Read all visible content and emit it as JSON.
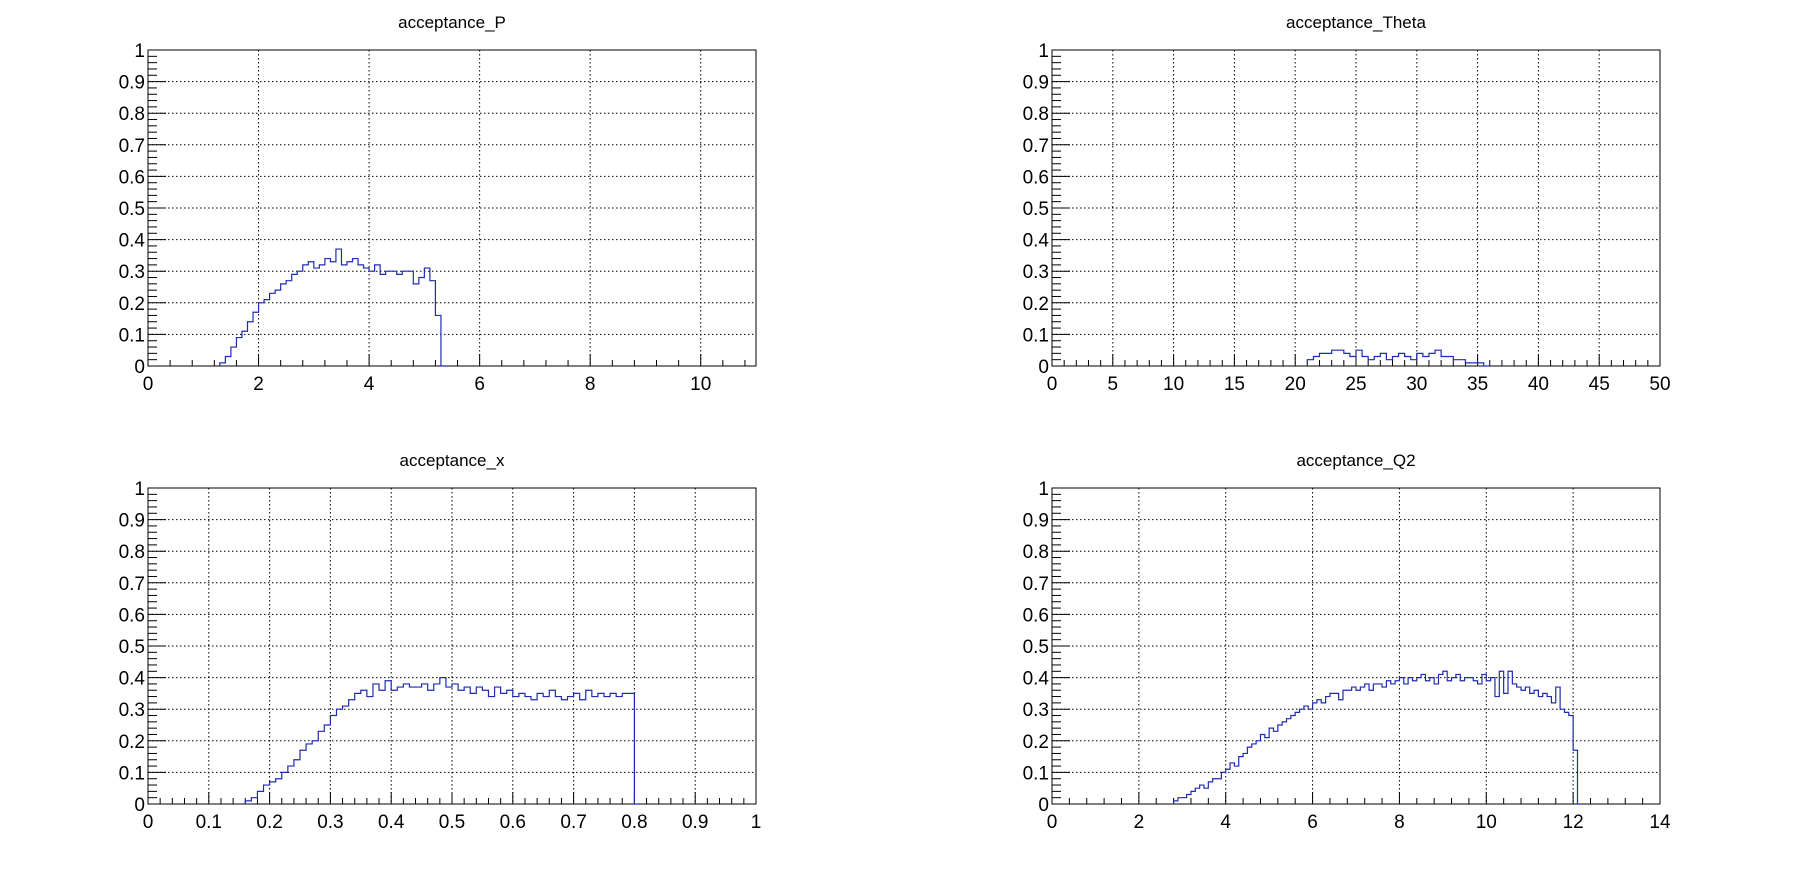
{
  "chart_data": [
    {
      "type": "histogram-step",
      "title": "acceptance_P",
      "xlim": [
        0,
        11
      ],
      "ylim": [
        0,
        1
      ],
      "xticks": [
        0,
        2,
        4,
        6,
        8,
        10
      ],
      "xtick_labels": [
        "0",
        "2",
        "4",
        "6",
        "8",
        "10"
      ],
      "yticks": [
        0,
        0.1,
        0.2,
        0.3,
        0.4,
        0.5,
        0.6,
        0.7,
        0.8,
        0.9,
        1
      ],
      "ytick_labels": [
        "0",
        "0.1",
        "0.2",
        "0.3",
        "0.4",
        "0.5",
        "0.6",
        "0.7",
        "0.8",
        "0.9",
        "1"
      ],
      "grid": true,
      "line_color": "#1f2bb0",
      "bin_start": 1.3,
      "bin_width": 0.1,
      "values": [
        0.01,
        0.03,
        0.06,
        0.09,
        0.11,
        0.14,
        0.17,
        0.2,
        0.21,
        0.23,
        0.24,
        0.26,
        0.27,
        0.29,
        0.3,
        0.32,
        0.33,
        0.31,
        0.32,
        0.34,
        0.33,
        0.37,
        0.32,
        0.33,
        0.34,
        0.32,
        0.31,
        0.3,
        0.32,
        0.29,
        0.3,
        0.3,
        0.29,
        0.3,
        0.3,
        0.26,
        0.28,
        0.31,
        0.27,
        0.16,
        0.0
      ]
    },
    {
      "type": "histogram-step",
      "title": "acceptance_Theta",
      "xlim": [
        0,
        50
      ],
      "ylim": [
        0,
        1
      ],
      "xticks": [
        0,
        5,
        10,
        15,
        20,
        25,
        30,
        35,
        40,
        45,
        50
      ],
      "xtick_labels": [
        "0",
        "5",
        "10",
        "15",
        "20",
        "25",
        "30",
        "35",
        "40",
        "45",
        "50"
      ],
      "yticks": [
        0,
        0.1,
        0.2,
        0.3,
        0.4,
        0.5,
        0.6,
        0.7,
        0.8,
        0.9,
        1
      ],
      "ytick_labels": [
        "0",
        "0.1",
        "0.2",
        "0.3",
        "0.4",
        "0.5",
        "0.6",
        "0.7",
        "0.8",
        "0.9",
        "1"
      ],
      "grid": true,
      "line_color": "#1f2bb0",
      "bin_start": 21,
      "bin_width": 0.5,
      "values": [
        0.02,
        0.03,
        0.04,
        0.04,
        0.05,
        0.05,
        0.04,
        0.03,
        0.05,
        0.03,
        0.02,
        0.03,
        0.04,
        0.02,
        0.03,
        0.04,
        0.03,
        0.02,
        0.04,
        0.03,
        0.04,
        0.05,
        0.03,
        0.03,
        0.02,
        0.02,
        0.01,
        0.01,
        0.01,
        0.0
      ]
    },
    {
      "type": "histogram-step",
      "title": "acceptance_x",
      "xlim": [
        0,
        1
      ],
      "ylim": [
        0,
        1
      ],
      "xticks": [
        0,
        0.1,
        0.2,
        0.3,
        0.4,
        0.5,
        0.6,
        0.7,
        0.8,
        0.9,
        1
      ],
      "xtick_labels": [
        "0",
        "0.1",
        "0.2",
        "0.3",
        "0.4",
        "0.5",
        "0.6",
        "0.7",
        "0.8",
        "0.9",
        "1"
      ],
      "yticks": [
        0,
        0.1,
        0.2,
        0.3,
        0.4,
        0.5,
        0.6,
        0.7,
        0.8,
        0.9,
        1
      ],
      "ytick_labels": [
        "0",
        "0.1",
        "0.2",
        "0.3",
        "0.4",
        "0.5",
        "0.6",
        "0.7",
        "0.8",
        "0.9",
        "1"
      ],
      "grid": true,
      "line_color": "#1f2bb0",
      "bin_start": 0.16,
      "bin_width": 0.01,
      "values": [
        0.01,
        0.02,
        0.04,
        0.06,
        0.07,
        0.08,
        0.1,
        0.12,
        0.14,
        0.17,
        0.19,
        0.2,
        0.23,
        0.25,
        0.28,
        0.3,
        0.31,
        0.33,
        0.35,
        0.36,
        0.34,
        0.38,
        0.36,
        0.39,
        0.36,
        0.37,
        0.38,
        0.37,
        0.37,
        0.38,
        0.36,
        0.38,
        0.4,
        0.37,
        0.38,
        0.36,
        0.37,
        0.35,
        0.37,
        0.36,
        0.34,
        0.37,
        0.35,
        0.36,
        0.34,
        0.35,
        0.34,
        0.33,
        0.35,
        0.34,
        0.36,
        0.34,
        0.33,
        0.34,
        0.35,
        0.33,
        0.36,
        0.34,
        0.35,
        0.34,
        0.35,
        0.34,
        0.35,
        0.35,
        0.0
      ]
    },
    {
      "type": "histogram-step",
      "title": "acceptance_Q2",
      "xlim": [
        0,
        14
      ],
      "ylim": [
        0,
        1
      ],
      "xticks": [
        0,
        2,
        4,
        6,
        8,
        10,
        12,
        14
      ],
      "xtick_labels": [
        "0",
        "2",
        "4",
        "6",
        "8",
        "10",
        "12",
        "14"
      ],
      "yticks": [
        0,
        0.1,
        0.2,
        0.3,
        0.4,
        0.5,
        0.6,
        0.7,
        0.8,
        0.9,
        1
      ],
      "ytick_labels": [
        "0",
        "0.1",
        "0.2",
        "0.3",
        "0.4",
        "0.5",
        "0.6",
        "0.7",
        "0.8",
        "0.9",
        "1"
      ],
      "grid": true,
      "line_color": "#1f2bb0",
      "bin_start": 2.8,
      "bin_width": 0.1,
      "values": [
        0.01,
        0.02,
        0.02,
        0.03,
        0.04,
        0.05,
        0.06,
        0.05,
        0.07,
        0.08,
        0.08,
        0.1,
        0.11,
        0.13,
        0.12,
        0.15,
        0.16,
        0.18,
        0.19,
        0.2,
        0.22,
        0.21,
        0.24,
        0.23,
        0.25,
        0.26,
        0.27,
        0.28,
        0.29,
        0.3,
        0.31,
        0.3,
        0.32,
        0.33,
        0.32,
        0.34,
        0.35,
        0.35,
        0.33,
        0.36,
        0.36,
        0.37,
        0.36,
        0.37,
        0.38,
        0.36,
        0.38,
        0.38,
        0.37,
        0.39,
        0.38,
        0.39,
        0.4,
        0.38,
        0.4,
        0.39,
        0.4,
        0.41,
        0.39,
        0.4,
        0.38,
        0.41,
        0.42,
        0.39,
        0.4,
        0.41,
        0.39,
        0.4,
        0.4,
        0.39,
        0.38,
        0.41,
        0.39,
        0.4,
        0.34,
        0.42,
        0.35,
        0.42,
        0.38,
        0.37,
        0.36,
        0.37,
        0.35,
        0.36,
        0.34,
        0.35,
        0.34,
        0.32,
        0.37,
        0.3,
        0.29,
        0.28,
        0.17,
        0.0
      ]
    }
  ]
}
